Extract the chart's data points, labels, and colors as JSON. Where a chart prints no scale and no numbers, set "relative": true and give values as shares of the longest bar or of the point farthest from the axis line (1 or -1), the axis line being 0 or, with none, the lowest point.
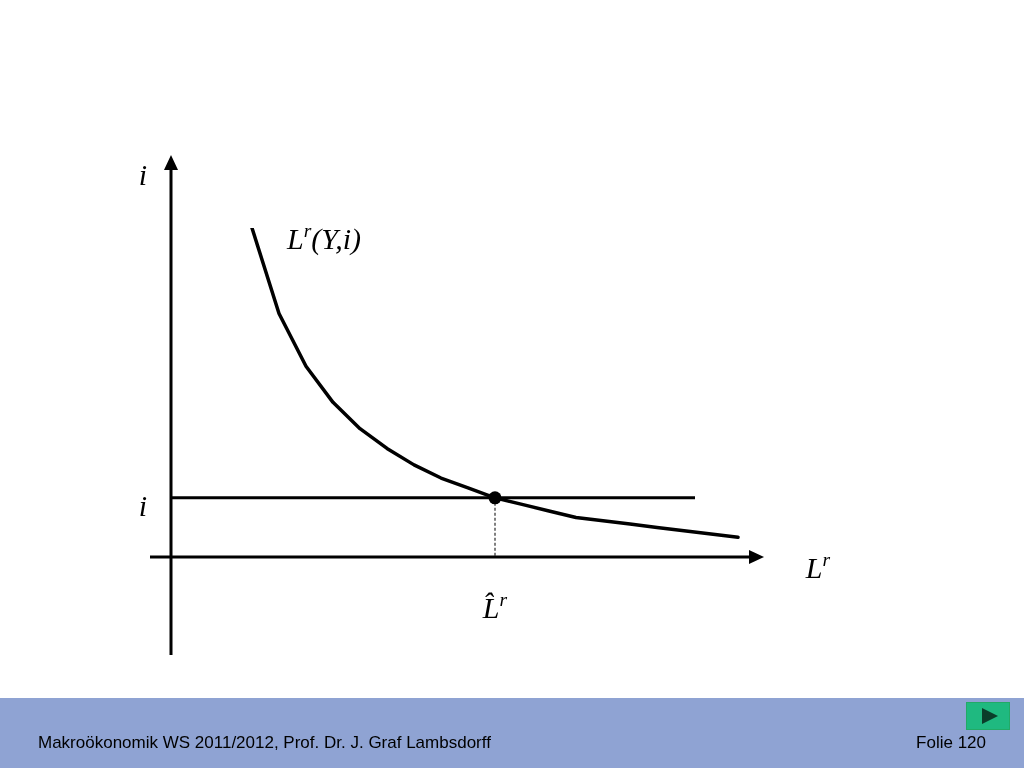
{
  "chart_data": {
    "type": "line",
    "relative": true,
    "ylabel": "i",
    "xlabel": "L$^{r}$",
    "categories": [
      null,
      null,
      null,
      null,
      null,
      null,
      null,
      null,
      null,
      null,
      null,
      null,
      null,
      null,
      null,
      null,
      null,
      null,
      null,
      null,
      null,
      null,
      null
    ],
    "series": [
      {
        "name": "L$^{r}$(Y,i)",
        "color": "#000000",
        "values": [
          null,
          null,
          null,
          1.0,
          0.74,
          0.58,
          0.47,
          0.39,
          0.33,
          0.28,
          0.24,
          0.21,
          0.18,
          0.16,
          0.14,
          0.12,
          0.11,
          0.1,
          0.09,
          0.08,
          0.07,
          0.06,
          null
        ]
      }
    ],
    "ref_lines": [
      {
        "axis": "y",
        "value": 0.18,
        "label": "i",
        "color": "#000000",
        "line_style": "solid"
      }
    ],
    "annotations": [
      {
        "text": "L̂$^{r}$",
        "y": 0.18
      },
      "Makroökonomik WS 2011/2012, Prof. Dr. J. Graf Lambsdorff",
      "Folie 120"
    ]
  }
}
